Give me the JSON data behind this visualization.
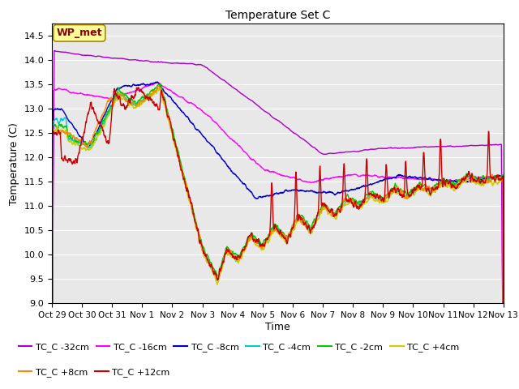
{
  "title": "Temperature Set C",
  "xlabel": "Time",
  "ylabel": "Temperature (C)",
  "ylim": [
    9.0,
    14.75
  ],
  "yticks": [
    9.0,
    9.5,
    10.0,
    10.5,
    11.0,
    11.5,
    12.0,
    12.5,
    13.0,
    13.5,
    14.0,
    14.5
  ],
  "bg_color": "#e8e8e8",
  "series_colors": {
    "TC_C -32cm": "#aa00cc",
    "TC_C -16cm": "#ff00ff",
    "TC_C -8cm": "#0000cc",
    "TC_C -4cm": "#00cccc",
    "TC_C -2cm": "#00cc00",
    "TC_C +4cm": "#cccc00",
    "TC_C +8cm": "#ff8800",
    "TC_C +12cm": "#cc0000"
  },
  "xtick_labels": [
    "Oct 29",
    "Oct 30",
    "Oct 31",
    "Nov 1",
    "Nov 2",
    "Nov 3",
    "Nov 4",
    "Nov 5",
    "Nov 6",
    "Nov 7",
    "Nov 8",
    "Nov 9",
    "Nov 10",
    "Nov 11",
    "Nov 12",
    "Nov 13"
  ],
  "n_points": 2000,
  "wp_met_label": "WP_met",
  "wp_met_color": "#ffff99",
  "wp_met_border": "#aa8800",
  "lw": 1.0
}
